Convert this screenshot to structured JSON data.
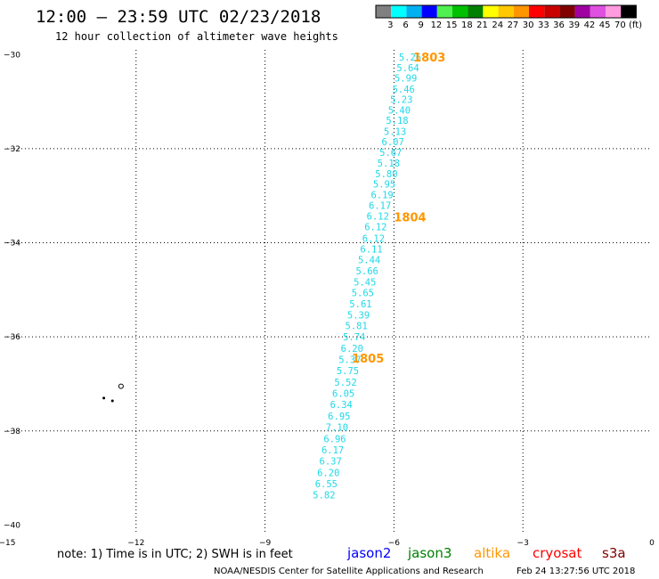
{
  "header": {
    "title": "12:00 – 23:59 UTC 02/23/2018",
    "subtitle": "12 hour collection of altimeter wave heights"
  },
  "colorbar": {
    "labels": [
      "3",
      "6",
      "9",
      "12",
      "15",
      "18",
      "21",
      "24",
      "27",
      "30",
      "33",
      "36",
      "39",
      "42",
      "45",
      "70",
      "(ft)"
    ],
    "colors": [
      "#808080",
      "#00ffff",
      "#00b0f0",
      "#0000ff",
      "#50f050",
      "#00c000",
      "#008000",
      "#ffff00",
      "#ffc800",
      "#ff9600",
      "#ff0000",
      "#c80000",
      "#800000",
      "#a000a0",
      "#e050e0",
      "#ff9bdf",
      "#000000"
    ]
  },
  "footer": {
    "note": "note: 1) Time is in UTC; 2) SWH is in feet",
    "satellites": [
      {
        "name": "jason2",
        "color": "#0000ff"
      },
      {
        "name": "jason3",
        "color": "#008000"
      },
      {
        "name": "altika",
        "color": "#ff9600"
      },
      {
        "name": "cryosat",
        "color": "#ff0000"
      },
      {
        "name": "s3a",
        "color": "#800000"
      }
    ],
    "credit": "NOAA/NESDIS Center for Satellite Applications and Research",
    "timestamp": "Feb 24 13:27:56 UTC 2018"
  },
  "chart_data": {
    "type": "scatter",
    "x_ticks": [
      "−15",
      "−12",
      "−9",
      "−6",
      "−3",
      "0"
    ],
    "y_ticks": [
      "−30",
      "−32",
      "−34",
      "−36",
      "−38",
      "−40"
    ],
    "xlim": [
      -15,
      0
    ],
    "ylim": [
      -40.2,
      -29.9
    ],
    "grid": true,
    "track_color": "#1fd8e8",
    "time_label_color": "#ff9600",
    "points": [
      {
        "lon": -5.75,
        "lat": -30.05,
        "swh": "5.26"
      },
      {
        "lon": -5.8,
        "lat": -30.28,
        "swh": "5.64"
      },
      {
        "lon": -5.85,
        "lat": -30.5,
        "swh": "5.99"
      },
      {
        "lon": -5.9,
        "lat": -30.73,
        "swh": "5.46"
      },
      {
        "lon": -5.95,
        "lat": -30.95,
        "swh": "5.23"
      },
      {
        "lon": -6.0,
        "lat": -31.18,
        "swh": "5.40"
      },
      {
        "lon": -6.05,
        "lat": -31.4,
        "swh": "5.18"
      },
      {
        "lon": -6.1,
        "lat": -31.63,
        "swh": "5.13"
      },
      {
        "lon": -6.15,
        "lat": -31.85,
        "swh": "6.07"
      },
      {
        "lon": -6.2,
        "lat": -32.08,
        "swh": "5.67"
      },
      {
        "lon": -6.25,
        "lat": -32.3,
        "swh": "5.18"
      },
      {
        "lon": -6.3,
        "lat": -32.53,
        "swh": "5.80"
      },
      {
        "lon": -6.35,
        "lat": -32.75,
        "swh": "5.95"
      },
      {
        "lon": -6.4,
        "lat": -32.98,
        "swh": "6.19"
      },
      {
        "lon": -6.45,
        "lat": -33.2,
        "swh": "6.17"
      },
      {
        "lon": -6.5,
        "lat": -33.43,
        "swh": "6.12"
      },
      {
        "lon": -6.55,
        "lat": -33.66,
        "swh": "6.12"
      },
      {
        "lon": -6.6,
        "lat": -33.9,
        "swh": "6.12"
      },
      {
        "lon": -6.65,
        "lat": -34.13,
        "swh": "6.11"
      },
      {
        "lon": -6.7,
        "lat": -34.36,
        "swh": "5.44"
      },
      {
        "lon": -6.75,
        "lat": -34.6,
        "swh": "5.66"
      },
      {
        "lon": -6.8,
        "lat": -34.83,
        "swh": "5.45"
      },
      {
        "lon": -6.85,
        "lat": -35.06,
        "swh": "5.65"
      },
      {
        "lon": -6.9,
        "lat": -35.3,
        "swh": "5.61"
      },
      {
        "lon": -6.95,
        "lat": -35.53,
        "swh": "5.39"
      },
      {
        "lon": -7.0,
        "lat": -35.76,
        "swh": "5.81"
      },
      {
        "lon": -7.05,
        "lat": -36.0,
        "swh": "5.74"
      },
      {
        "lon": -7.1,
        "lat": -36.24,
        "swh": "6.20"
      },
      {
        "lon": -7.15,
        "lat": -36.48,
        "swh": "5.37"
      },
      {
        "lon": -7.2,
        "lat": -36.72,
        "swh": "5.75"
      },
      {
        "lon": -7.25,
        "lat": -36.96,
        "swh": "5.52"
      },
      {
        "lon": -7.3,
        "lat": -37.2,
        "swh": "6.05"
      },
      {
        "lon": -7.35,
        "lat": -37.44,
        "swh": "6.34"
      },
      {
        "lon": -7.4,
        "lat": -37.68,
        "swh": "6.95"
      },
      {
        "lon": -7.45,
        "lat": -37.92,
        "swh": "7.10"
      },
      {
        "lon": -7.5,
        "lat": -38.16,
        "swh": "6.96"
      },
      {
        "lon": -7.55,
        "lat": -38.4,
        "swh": "6.17"
      },
      {
        "lon": -7.6,
        "lat": -38.64,
        "swh": "6.37"
      },
      {
        "lon": -7.65,
        "lat": -38.88,
        "swh": "6.20"
      },
      {
        "lon": -7.7,
        "lat": -39.12,
        "swh": "6.55"
      },
      {
        "lon": -7.75,
        "lat": -39.36,
        "swh": "5.82"
      }
    ],
    "time_labels": [
      {
        "lon": -5.55,
        "lat": -30.05,
        "text": "1803"
      },
      {
        "lon": -6.0,
        "lat": -33.45,
        "text": "1804"
      },
      {
        "lon": -6.98,
        "lat": -36.45,
        "text": "1805"
      }
    ],
    "land": [
      {
        "lon": -12.35,
        "lat": -37.05
      },
      {
        "lon": -12.75,
        "lat": -37.3
      },
      {
        "lon": -12.55,
        "lat": -37.36
      }
    ]
  }
}
